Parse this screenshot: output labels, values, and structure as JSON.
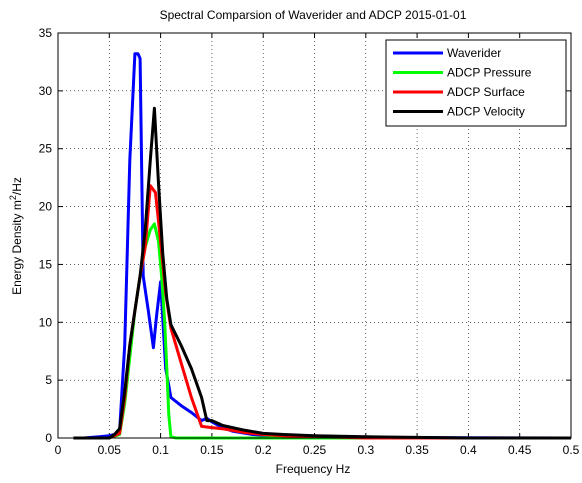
{
  "chart_data": {
    "type": "line",
    "title": "Spectral Comparsion of Waverider and ADCP 2015-01-01",
    "xlabel": "Frequency Hz",
    "ylabel_main": "Energy Density m",
    "ylabel_sup": "2",
    "ylabel_tail": "/Hz",
    "xlim": [
      0,
      0.5
    ],
    "ylim": [
      0,
      35
    ],
    "grid": true,
    "legend_position": "top-right",
    "xticks": [
      0,
      0.05,
      0.1,
      0.15,
      0.2,
      0.25,
      0.3,
      0.35,
      0.4,
      0.45,
      0.5
    ],
    "xtick_labels": [
      "0",
      "0.05",
      "0.1",
      "0.15",
      "0.2",
      "0.25",
      "0.3",
      "0.35",
      "0.4",
      "0.45",
      "0.5"
    ],
    "yticks": [
      0,
      5,
      10,
      15,
      20,
      25,
      30,
      35
    ],
    "ytick_labels": [
      "0",
      "5",
      "10",
      "15",
      "20",
      "25",
      "30",
      "35"
    ],
    "series": [
      {
        "name": "Waverider",
        "color": "#0000ff",
        "x": [
          0.025,
          0.04,
          0.05,
          0.055,
          0.06,
          0.065,
          0.07,
          0.075,
          0.078,
          0.08,
          0.083,
          0.088,
          0.093,
          0.096,
          0.1,
          0.105,
          0.11,
          0.12,
          0.13,
          0.14,
          0.145,
          0.15,
          0.16,
          0.17,
          0.19,
          0.21,
          0.25,
          0.3,
          0.5
        ],
        "y": [
          0,
          0.1,
          0.2,
          0.3,
          0.6,
          8,
          24,
          33.2,
          33.2,
          32.8,
          14,
          11,
          7.8,
          10.5,
          13.5,
          6,
          3.5,
          2.8,
          2.2,
          1.5,
          1.7,
          1.4,
          0.9,
          0.6,
          0.3,
          0.2,
          0.1,
          0.05,
          0
        ]
      },
      {
        "name": "ADCP Pressure",
        "color": "#00ff00",
        "x": [
          0.05,
          0.06,
          0.065,
          0.07,
          0.075,
          0.08,
          0.085,
          0.09,
          0.094,
          0.098,
          0.101,
          0.104,
          0.106,
          0.108,
          0.11,
          0.115,
          0.13,
          0.5
        ],
        "y": [
          0,
          0.3,
          3,
          7,
          11,
          14,
          16.5,
          18,
          18.5,
          17,
          14,
          10,
          6,
          2,
          0.1,
          0,
          0,
          0
        ]
      },
      {
        "name": "ADCP Surface",
        "color": "#ff0000",
        "x": [
          0.05,
          0.06,
          0.065,
          0.07,
          0.075,
          0.08,
          0.085,
          0.09,
          0.095,
          0.1,
          0.105,
          0.11,
          0.12,
          0.13,
          0.14,
          0.15,
          0.16,
          0.18,
          0.2,
          0.22,
          0.25,
          0.28,
          0.3,
          0.5
        ],
        "y": [
          0,
          0.4,
          3.5,
          8,
          11,
          14,
          16.5,
          21.8,
          21.2,
          17,
          12.5,
          9.5,
          6.5,
          3.5,
          1,
          0.9,
          0.8,
          0.5,
          0.3,
          0.2,
          0.1,
          0.05,
          0,
          0
        ]
      },
      {
        "name": "ADCP Velocity",
        "color": "#000000",
        "x": [
          0.015,
          0.05,
          0.055,
          0.06,
          0.065,
          0.07,
          0.075,
          0.08,
          0.085,
          0.09,
          0.094,
          0.098,
          0.102,
          0.106,
          0.11,
          0.12,
          0.13,
          0.14,
          0.145,
          0.15,
          0.16,
          0.18,
          0.2,
          0.22,
          0.25,
          0.3,
          0.35,
          0.4,
          0.5
        ],
        "y": [
          0,
          0,
          0.3,
          0.8,
          4,
          8,
          11,
          14,
          18,
          24,
          28.5,
          22,
          16,
          12,
          9.8,
          8,
          6,
          3.5,
          1.5,
          1.5,
          1.1,
          0.7,
          0.4,
          0.3,
          0.2,
          0.1,
          0.05,
          0,
          0
        ]
      }
    ]
  }
}
